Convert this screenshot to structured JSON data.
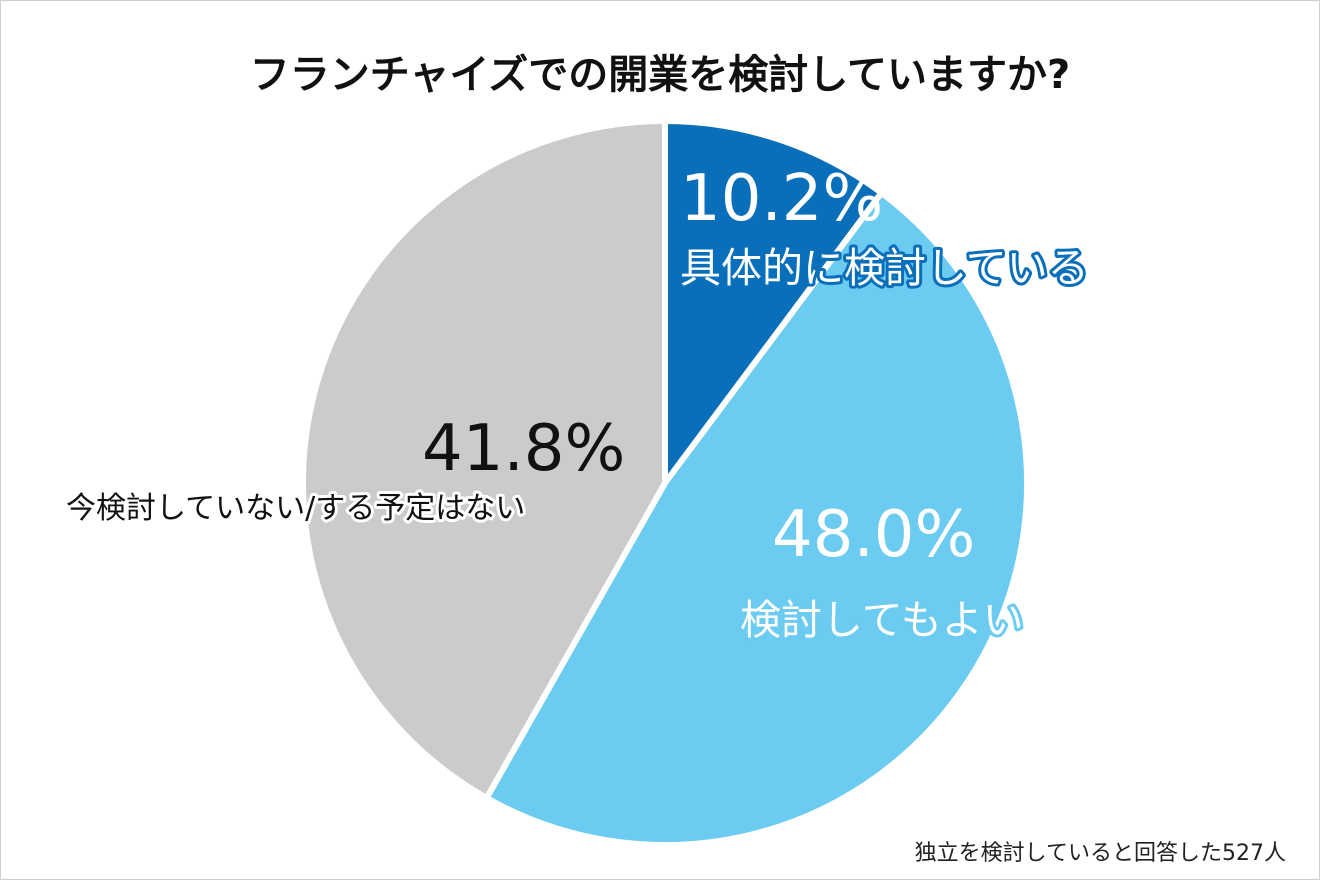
{
  "chart_data": {
    "type": "pie",
    "title": "フランチャイズでの開業を検討していますか?",
    "slices": [
      {
        "label": "具体的に検討している",
        "value": 10.2,
        "display": "10.2%",
        "color": "#0a6fba"
      },
      {
        "label": "検討してもよい",
        "value": 48.0,
        "display": "48.0%",
        "color": "#6ccbf0"
      },
      {
        "label": "今検討していない/する予定はない",
        "value": 41.8,
        "display": "41.8%",
        "color": "#cbcbcb"
      }
    ],
    "start": "12 o'clock",
    "direction": "clockwise",
    "legend": "none (labels on slices)",
    "note": "独立を検討していると回答した527人"
  }
}
